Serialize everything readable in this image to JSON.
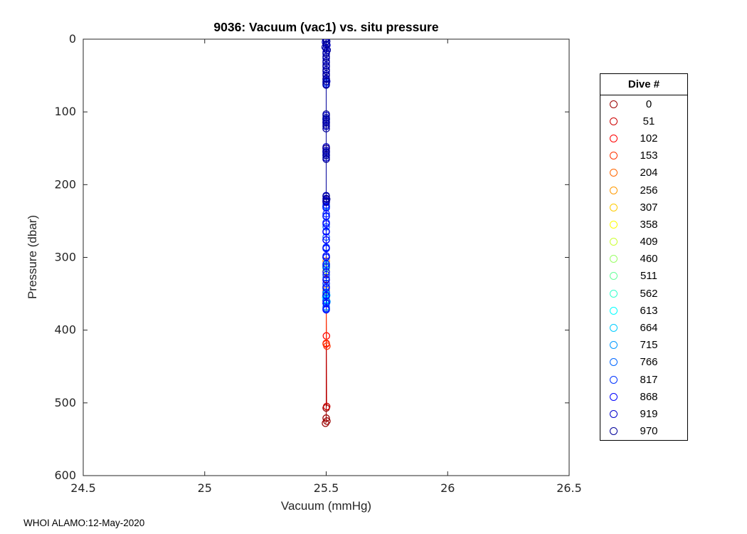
{
  "page": {
    "footer": "WHOI ALAMO:12-May-2020"
  },
  "chart_data": {
    "type": "scatter",
    "title": "9036: Vacuum (vac1) vs. situ pressure",
    "xlabel": "Vacuum (mmHg)",
    "ylabel": "Pressure (dbar)",
    "xlim": [
      24.5,
      26.5
    ],
    "ylim": [
      0,
      600
    ],
    "y_axis_reversed": true,
    "grid": false,
    "x_ticks": [
      24.5,
      25,
      25.5,
      26,
      26.5
    ],
    "x_tick_labels": [
      "24.5",
      "25",
      "25.5",
      "26",
      "26.5"
    ],
    "y_ticks": [
      0,
      100,
      200,
      300,
      400,
      500,
      600
    ],
    "y_tick_labels": [
      "0",
      "100",
      "200",
      "300",
      "400",
      "500",
      "600"
    ],
    "legend": {
      "title": "Dive #",
      "position": "outside-right"
    },
    "marker": "circle-open",
    "series": [
      {
        "name": "0",
        "color": "#990000",
        "points": [
          [
            25.5,
            0
          ],
          [
            25.5,
            110
          ],
          [
            25.5,
            220
          ],
          [
            25.5,
            330
          ],
          [
            25.5,
            507
          ],
          [
            25.5,
            521
          ],
          [
            25.503,
            525
          ],
          [
            25.497,
            528
          ]
        ]
      },
      {
        "name": "51",
        "color": "#CC0000",
        "points": [
          [
            25.5,
            0
          ],
          [
            25.5,
            115
          ],
          [
            25.5,
            230
          ],
          [
            25.5,
            350
          ],
          [
            25.502,
            505
          ]
        ]
      },
      {
        "name": "102",
        "color": "#FF0000",
        "points": [
          [
            25.5,
            0
          ],
          [
            25.5,
            150
          ],
          [
            25.5,
            300
          ],
          [
            25.5,
            360
          ],
          [
            25.501,
            408
          ],
          [
            25.5,
            419
          ]
        ]
      },
      {
        "name": "153",
        "color": "#FF3300",
        "points": [
          [
            25.5,
            0
          ],
          [
            25.5,
            150
          ],
          [
            25.5,
            300
          ],
          [
            25.5,
            355
          ],
          [
            25.5,
            418
          ],
          [
            25.503,
            422
          ]
        ]
      },
      {
        "name": "204",
        "color": "#FF6600",
        "points": [
          [
            25.5,
            0
          ],
          [
            25.5,
            110
          ],
          [
            25.5,
            230
          ],
          [
            25.5,
            300
          ],
          [
            25.5,
            340
          ]
        ]
      },
      {
        "name": "256",
        "color": "#FF9900",
        "points": [
          [
            25.5,
            0
          ],
          [
            25.5,
            110
          ],
          [
            25.5,
            230
          ],
          [
            25.5,
            305
          ],
          [
            25.5,
            345
          ]
        ]
      },
      {
        "name": "307",
        "color": "#FFCC00",
        "points": [
          [
            25.5,
            0
          ],
          [
            25.5,
            110
          ],
          [
            25.5,
            230
          ],
          [
            25.5,
            310
          ],
          [
            25.5,
            350
          ]
        ]
      },
      {
        "name": "358",
        "color": "#FFFF00",
        "points": [
          [
            25.5,
            0
          ],
          [
            25.5,
            110
          ],
          [
            25.5,
            230
          ],
          [
            25.5,
            315
          ],
          [
            25.5,
            352
          ]
        ]
      },
      {
        "name": "409",
        "color": "#CCFF33",
        "points": [
          [
            25.5,
            0
          ],
          [
            25.5,
            110
          ],
          [
            25.5,
            230
          ],
          [
            25.5,
            318
          ],
          [
            25.5,
            354
          ]
        ]
      },
      {
        "name": "460",
        "color": "#99FF66",
        "points": [
          [
            25.5,
            0
          ],
          [
            25.5,
            110
          ],
          [
            25.5,
            230
          ],
          [
            25.5,
            315
          ],
          [
            25.5,
            350
          ]
        ]
      },
      {
        "name": "511",
        "color": "#66FF99",
        "points": [
          [
            25.5,
            0
          ],
          [
            25.5,
            110
          ],
          [
            25.5,
            230
          ],
          [
            25.5,
            312
          ],
          [
            25.5,
            348
          ]
        ]
      },
      {
        "name": "562",
        "color": "#33FFCC",
        "points": [
          [
            25.5,
            0
          ],
          [
            25.5,
            110
          ],
          [
            25.5,
            230
          ],
          [
            25.5,
            314
          ],
          [
            25.5,
            352
          ]
        ]
      },
      {
        "name": "613",
        "color": "#00FFFF",
        "points": [
          [
            25.5,
            0
          ],
          [
            25.5,
            110
          ],
          [
            25.5,
            230
          ],
          [
            25.5,
            310
          ],
          [
            25.5,
            350
          ],
          [
            25.498,
            355
          ],
          [
            25.5,
            359
          ]
        ]
      },
      {
        "name": "664",
        "color": "#00CCFF",
        "points": [
          [
            25.5,
            0
          ],
          [
            25.5,
            110
          ],
          [
            25.5,
            230
          ],
          [
            25.5,
            312
          ],
          [
            25.502,
            352
          ],
          [
            25.5,
            358
          ],
          [
            25.5,
            363
          ]
        ]
      },
      {
        "name": "715",
        "color": "#0099FF",
        "points": [
          [
            25.5,
            0
          ],
          [
            25.5,
            110
          ],
          [
            25.5,
            230
          ],
          [
            25.5,
            300
          ],
          [
            25.5,
            342
          ],
          [
            25.5,
            352
          ],
          [
            25.503,
            361
          ],
          [
            25.5,
            368
          ]
        ]
      },
      {
        "name": "766",
        "color": "#0066FF",
        "points": [
          [
            25.5,
            0
          ],
          [
            25.5,
            60
          ],
          [
            25.5,
            115
          ],
          [
            25.5,
            160
          ],
          [
            25.5,
            230
          ],
          [
            25.5,
            244
          ],
          [
            25.5,
            258
          ],
          [
            25.5,
            272
          ],
          [
            25.5,
            286
          ],
          [
            25.5,
            300
          ],
          [
            25.5,
            314
          ],
          [
            25.5,
            328
          ],
          [
            25.5,
            340
          ],
          [
            25.5,
            352
          ],
          [
            25.5,
            363
          ],
          [
            25.5,
            371
          ]
        ]
      },
      {
        "name": "817",
        "color": "#0033FF",
        "points": [
          [
            25.5,
            0
          ],
          [
            25.5,
            60
          ],
          [
            25.5,
            110
          ],
          [
            25.5,
            155
          ],
          [
            25.5,
            228
          ],
          [
            25.5,
            240
          ],
          [
            25.5,
            252
          ],
          [
            25.5,
            264
          ],
          [
            25.5,
            276
          ],
          [
            25.5,
            288
          ],
          [
            25.5,
            300
          ],
          [
            25.5,
            312
          ],
          [
            25.5,
            324
          ],
          [
            25.5,
            336
          ],
          [
            25.5,
            348
          ],
          [
            25.5,
            360
          ],
          [
            25.5,
            370
          ]
        ]
      },
      {
        "name": "868",
        "color": "#0000FF",
        "points": [
          [
            25.5,
            0
          ],
          [
            25.5,
            55
          ],
          [
            25.5,
            110
          ],
          [
            25.5,
            155
          ],
          [
            25.5,
            222
          ],
          [
            25.5,
            232
          ],
          [
            25.5,
            243
          ],
          [
            25.5,
            254
          ],
          [
            25.5,
            265
          ],
          [
            25.5,
            276
          ],
          [
            25.5,
            287
          ],
          [
            25.5,
            298
          ],
          [
            25.5,
            309
          ],
          [
            25.5,
            320
          ],
          [
            25.5,
            331
          ],
          [
            25.5,
            342
          ],
          [
            25.5,
            353
          ],
          [
            25.5,
            363
          ],
          [
            25.5,
            372
          ]
        ]
      },
      {
        "name": "919",
        "color": "#0000CC",
        "points": [
          [
            25.5,
            0
          ],
          [
            25.497,
            4
          ],
          [
            25.503,
            8
          ],
          [
            25.5,
            13
          ],
          [
            25.5,
            18
          ],
          [
            25.5,
            24
          ],
          [
            25.5,
            30
          ],
          [
            25.5,
            36
          ],
          [
            25.5,
            42
          ],
          [
            25.5,
            48
          ],
          [
            25.5,
            55
          ],
          [
            25.502,
            58
          ],
          [
            25.5,
            62
          ],
          [
            25.5,
            105
          ],
          [
            25.5,
            110
          ],
          [
            25.5,
            115
          ],
          [
            25.5,
            120
          ],
          [
            25.5,
            148
          ],
          [
            25.5,
            153
          ],
          [
            25.5,
            158
          ],
          [
            25.5,
            163
          ],
          [
            25.5,
            215
          ],
          [
            25.5,
            219
          ],
          [
            25.5,
            223
          ]
        ]
      },
      {
        "name": "970",
        "color": "#000099",
        "points": [
          [
            25.498,
            0
          ],
          [
            25.502,
            3
          ],
          [
            25.5,
            7
          ],
          [
            25.496,
            11
          ],
          [
            25.504,
            15
          ],
          [
            25.5,
            20
          ],
          [
            25.5,
            26
          ],
          [
            25.5,
            32
          ],
          [
            25.5,
            38
          ],
          [
            25.5,
            44
          ],
          [
            25.5,
            50
          ],
          [
            25.5,
            54
          ],
          [
            25.5,
            58
          ],
          [
            25.5,
            63
          ],
          [
            25.5,
            103
          ],
          [
            25.5,
            108
          ],
          [
            25.5,
            113
          ],
          [
            25.5,
            118
          ],
          [
            25.5,
            123
          ],
          [
            25.5,
            150
          ],
          [
            25.5,
            155
          ],
          [
            25.5,
            160
          ],
          [
            25.5,
            165
          ],
          [
            25.5,
            216
          ],
          [
            25.502,
            220
          ],
          [
            25.5,
            224
          ]
        ]
      }
    ]
  }
}
